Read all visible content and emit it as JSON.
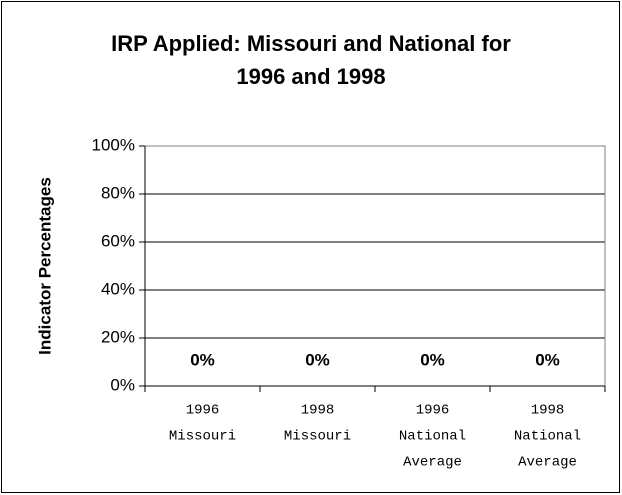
{
  "chart_data": {
    "type": "bar",
    "title": [
      "IRP Applied: Missouri and National for",
      "1996 and 1998"
    ],
    "y_label": "Indicator Percentages",
    "categories": [
      [
        "1996",
        "Missouri"
      ],
      [
        "1998",
        "Missouri"
      ],
      [
        "1996",
        "National",
        "Average"
      ],
      [
        "1998",
        "National",
        "Average"
      ]
    ],
    "values": [
      0,
      0,
      0,
      0
    ],
    "value_labels": [
      "0%",
      "0%",
      "0%",
      "0%"
    ],
    "color": "#333399",
    "ylim": [
      0,
      100
    ],
    "yticks": [
      {
        "value": 0,
        "label": "0%"
      },
      {
        "value": 20,
        "label": "20%"
      },
      {
        "value": 40,
        "label": "40%"
      },
      {
        "value": 60,
        "label": "60%"
      },
      {
        "value": 80,
        "label": "80%"
      },
      {
        "value": 100,
        "label": "100%"
      }
    ],
    "grid": true
  }
}
